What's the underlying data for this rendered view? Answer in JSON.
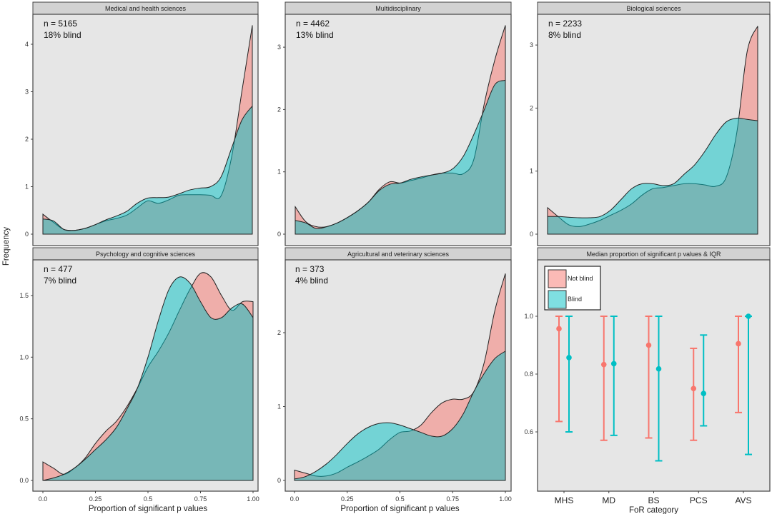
{
  "colors": {
    "not_blind": "#F8766D",
    "blind": "#00BFC4",
    "panel_bg": "#e6e6e6"
  },
  "y_axis_label": "Frequency",
  "chart_data": [
    {
      "type": "area",
      "title": "Medical and health sciences",
      "annotation": [
        "n = 5165",
        "18% blind"
      ],
      "yticks": [
        "0",
        "1",
        "2",
        "3",
        "4"
      ],
      "xticks": [],
      "xlabel": "",
      "ylim": [
        0,
        4.6
      ],
      "xlim": [
        0,
        1
      ],
      "x": [
        0,
        0.05,
        0.1,
        0.15,
        0.2,
        0.25,
        0.3,
        0.35,
        0.4,
        0.45,
        0.5,
        0.55,
        0.6,
        0.65,
        0.7,
        0.75,
        0.8,
        0.85,
        0.9,
        0.95,
        1.0
      ],
      "series": [
        {
          "name": "Not blind",
          "values": [
            0.42,
            0.25,
            0.1,
            0.08,
            0.12,
            0.2,
            0.28,
            0.33,
            0.4,
            0.55,
            0.7,
            0.65,
            0.72,
            0.82,
            0.83,
            0.83,
            0.82,
            0.8,
            1.6,
            3.0,
            4.4
          ]
        },
        {
          "name": "Blind",
          "values": [
            0.32,
            0.28,
            0.1,
            0.08,
            0.12,
            0.2,
            0.3,
            0.38,
            0.48,
            0.65,
            0.76,
            0.77,
            0.78,
            0.85,
            0.93,
            0.97,
            1.0,
            1.2,
            1.8,
            2.4,
            2.7
          ]
        }
      ]
    },
    {
      "type": "area",
      "title": "Multidisciplinary",
      "annotation": [
        "n = 4462",
        "13% blind"
      ],
      "yticks": [
        "0",
        "1",
        "2",
        "3"
      ],
      "xticks": [],
      "xlabel": "",
      "ylim": [
        0,
        3.5
      ],
      "xlim": [
        0,
        1
      ],
      "x": [
        0,
        0.05,
        0.1,
        0.15,
        0.2,
        0.25,
        0.3,
        0.35,
        0.4,
        0.45,
        0.5,
        0.55,
        0.6,
        0.65,
        0.7,
        0.75,
        0.8,
        0.85,
        0.9,
        0.95,
        1.0
      ],
      "series": [
        {
          "name": "Not blind",
          "values": [
            0.44,
            0.2,
            0.12,
            0.12,
            0.18,
            0.27,
            0.38,
            0.52,
            0.72,
            0.84,
            0.82,
            0.86,
            0.9,
            0.95,
            0.98,
            0.98,
            0.97,
            1.2,
            2.1,
            2.8,
            3.35
          ]
        },
        {
          "name": "Blind",
          "values": [
            0.22,
            0.18,
            0.09,
            0.12,
            0.18,
            0.27,
            0.38,
            0.52,
            0.7,
            0.8,
            0.82,
            0.88,
            0.92,
            0.95,
            0.98,
            1.05,
            1.25,
            1.6,
            2.0,
            2.4,
            2.47
          ]
        }
      ]
    },
    {
      "type": "area",
      "title": "Biological sciences",
      "annotation": [
        "n = 2233",
        "8% blind"
      ],
      "yticks": [
        "0",
        "1",
        "2",
        "3"
      ],
      "xticks": [],
      "xlabel": "",
      "ylim": [
        0,
        3.4
      ],
      "xlim": [
        0,
        1
      ],
      "x": [
        0,
        0.05,
        0.1,
        0.15,
        0.2,
        0.25,
        0.3,
        0.35,
        0.4,
        0.45,
        0.5,
        0.55,
        0.6,
        0.65,
        0.7,
        0.75,
        0.8,
        0.85,
        0.9,
        0.95,
        1.0
      ],
      "series": [
        {
          "name": "Not blind",
          "values": [
            0.42,
            0.28,
            0.15,
            0.12,
            0.16,
            0.22,
            0.3,
            0.38,
            0.48,
            0.62,
            0.72,
            0.74,
            0.77,
            0.8,
            0.8,
            0.78,
            0.76,
            0.9,
            1.6,
            2.9,
            3.3
          ]
        },
        {
          "name": "Blind",
          "values": [
            0.28,
            0.28,
            0.27,
            0.26,
            0.26,
            0.28,
            0.38,
            0.55,
            0.72,
            0.8,
            0.8,
            0.77,
            0.8,
            0.95,
            1.1,
            1.32,
            1.58,
            1.78,
            1.84,
            1.82,
            1.8
          ]
        }
      ]
    },
    {
      "type": "area",
      "title": "Psychology and cognitive sciences",
      "annotation": [
        "n = 477",
        "7% blind"
      ],
      "yticks": [
        "0.0",
        "0.5",
        "1.0",
        "1.5"
      ],
      "xticks": [
        "0.0",
        "0.25",
        "0.5",
        "0.75",
        "1.00"
      ],
      "xlabel": "Proportion of significant p values",
      "ylim": [
        0,
        1.75
      ],
      "xlim": [
        0,
        1
      ],
      "x": [
        0,
        0.05,
        0.1,
        0.15,
        0.2,
        0.25,
        0.3,
        0.35,
        0.4,
        0.45,
        0.5,
        0.55,
        0.6,
        0.65,
        0.7,
        0.75,
        0.8,
        0.85,
        0.9,
        0.95,
        1.0
      ],
      "series": [
        {
          "name": "Not blind",
          "values": [
            0.15,
            0.1,
            0.05,
            0.1,
            0.18,
            0.3,
            0.4,
            0.48,
            0.6,
            0.75,
            0.92,
            1.05,
            1.2,
            1.38,
            1.55,
            1.68,
            1.65,
            1.5,
            1.38,
            1.45,
            1.45
          ]
        },
        {
          "name": "Blind",
          "values": [
            0,
            0.02,
            0.05,
            0.1,
            0.17,
            0.25,
            0.33,
            0.43,
            0.58,
            0.75,
            1.0,
            1.3,
            1.55,
            1.65,
            1.6,
            1.45,
            1.32,
            1.32,
            1.4,
            1.43,
            1.32
          ]
        }
      ]
    },
    {
      "type": "area",
      "title": "Agricultural and veterinary sciences",
      "annotation": [
        "n = 373",
        "4% blind"
      ],
      "yticks": [
        "0",
        "1",
        "2"
      ],
      "xticks": [
        "0.0",
        "0.25",
        "0.5",
        "0.75",
        "1.00"
      ],
      "xlabel": "Proportion of significant p values",
      "ylim": [
        0,
        2.9
      ],
      "xlim": [
        0,
        1
      ],
      "x": [
        0,
        0.05,
        0.1,
        0.15,
        0.2,
        0.25,
        0.3,
        0.35,
        0.4,
        0.45,
        0.5,
        0.55,
        0.6,
        0.65,
        0.7,
        0.75,
        0.8,
        0.85,
        0.9,
        0.95,
        1.0
      ],
      "series": [
        {
          "name": "Not blind",
          "values": [
            0.14,
            0.1,
            0.06,
            0.06,
            0.1,
            0.18,
            0.25,
            0.33,
            0.42,
            0.55,
            0.65,
            0.67,
            0.75,
            0.92,
            1.05,
            1.1,
            1.1,
            1.2,
            1.6,
            2.3,
            2.8
          ]
        },
        {
          "name": "Blind",
          "values": [
            0.02,
            0.05,
            0.12,
            0.22,
            0.35,
            0.5,
            0.63,
            0.72,
            0.77,
            0.78,
            0.75,
            0.7,
            0.65,
            0.6,
            0.6,
            0.7,
            0.9,
            1.2,
            1.45,
            1.65,
            1.75
          ]
        }
      ]
    },
    {
      "type": "scatter",
      "title": "Median proportion of significant p values & IQR",
      "xlabel": "FoR category",
      "yticks": [
        "0.6",
        "0.8",
        "1.0"
      ],
      "ylim": [
        0.42,
        1.18
      ],
      "categories": [
        "MHS",
        "MD",
        "BS",
        "PCS",
        "AVS"
      ],
      "legend": {
        "placement": "top-left",
        "entries": [
          "Not blind",
          "Blind"
        ]
      },
      "series": [
        {
          "name": "Not blind",
          "median": [
            0.957,
            0.833,
            0.9,
            0.75,
            0.905
          ],
          "q1": [
            0.636,
            0.571,
            0.579,
            0.571,
            0.667
          ],
          "q3": [
            1.0,
            1.0,
            1.0,
            0.889,
            1.0
          ]
        },
        {
          "name": "Blind",
          "median": [
            0.857,
            0.836,
            0.818,
            0.733,
            1.0
          ],
          "q1": [
            0.6,
            0.588,
            0.5,
            0.621,
            0.522
          ],
          "q3": [
            1.0,
            1.0,
            1.0,
            0.935,
            1.0
          ]
        }
      ]
    }
  ]
}
